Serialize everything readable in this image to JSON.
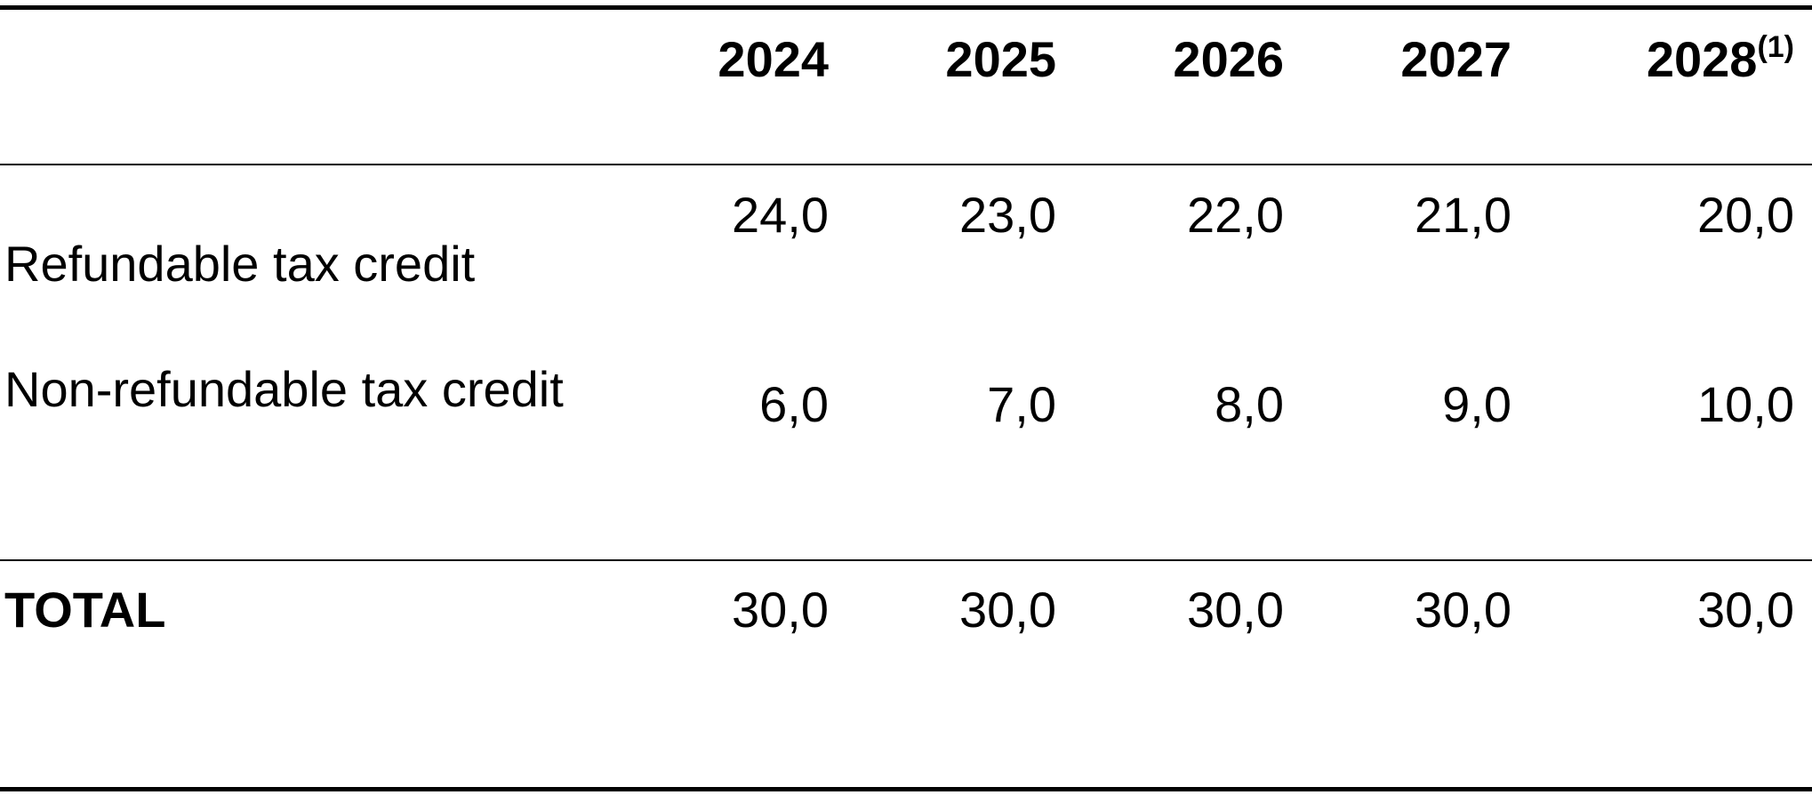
{
  "table": {
    "columns": [
      "2024",
      "2025",
      "2026",
      "2027",
      "2028"
    ],
    "last_column_note": "(1)",
    "rows": [
      {
        "label": "Refundable tax credit",
        "values": [
          "24,0",
          "23,0",
          "22,0",
          "21,0",
          "20,0"
        ]
      },
      {
        "label": "Non-refundable tax credit",
        "values": [
          "6,0",
          "7,0",
          "8,0",
          "9,0",
          "10,0"
        ]
      }
    ],
    "total": {
      "label": "TOTAL",
      "values": [
        "30,0",
        "30,0",
        "30,0",
        "30,0",
        "30,0"
      ]
    }
  }
}
